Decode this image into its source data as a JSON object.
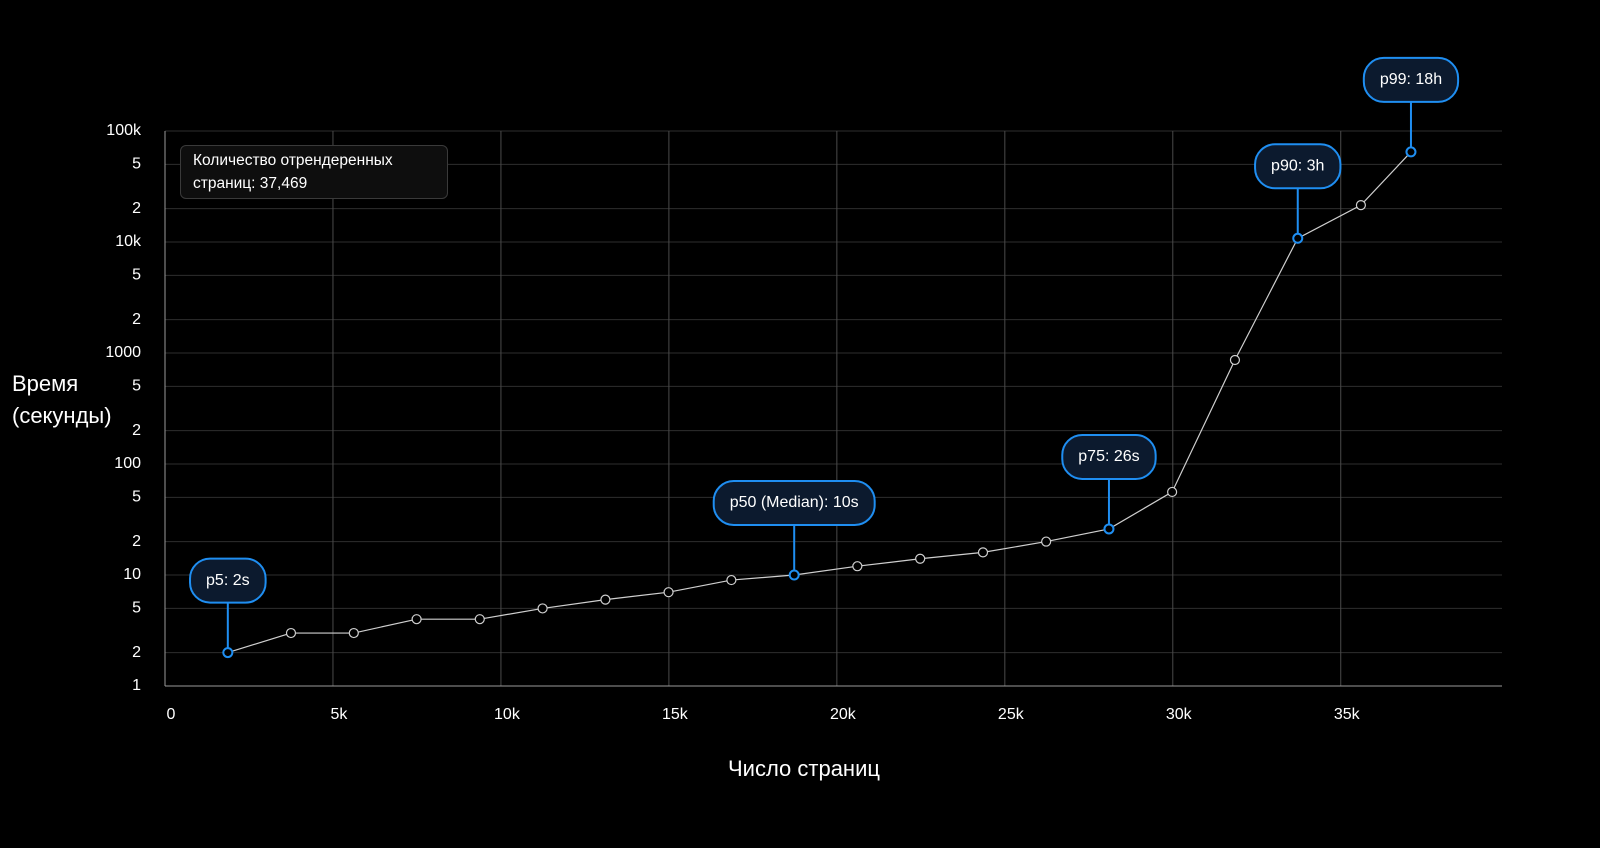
{
  "chart_data": {
    "type": "line",
    "x_label": "Число страниц",
    "y_label": "Время (секунды)",
    "info_box": "Количество отрендеренных страниц: 37,469",
    "log_y": true,
    "grid": true,
    "xlim": [
      0,
      39800
    ],
    "ylim": [
      1,
      100000
    ],
    "xticks": [
      0,
      {
        "value": 5000,
        "label": "5k"
      },
      {
        "value": 10000,
        "label": "10k"
      },
      {
        "value": 15000,
        "label": "15k"
      },
      {
        "value": 20000,
        "label": "20k"
      },
      {
        "value": 25000,
        "label": "25k"
      },
      {
        "value": 30000,
        "label": "30k"
      },
      {
        "value": 35000,
        "label": "35k"
      }
    ],
    "yticks": [
      1,
      {
        "value": 2,
        "label": "2"
      },
      {
        "value": 5,
        "label": "5"
      },
      10,
      {
        "value": 20,
        "label": "2"
      },
      {
        "value": 50,
        "label": "5"
      },
      100,
      {
        "value": 200,
        "label": "2"
      },
      {
        "value": 500,
        "label": "5"
      },
      1000,
      {
        "value": 2000,
        "label": "2"
      },
      {
        "value": 5000,
        "label": "5"
      },
      {
        "value": 10000,
        "label": "10k"
      },
      {
        "value": 20000,
        "label": "2"
      },
      {
        "value": 50000,
        "label": "5"
      },
      {
        "value": 100000,
        "label": "100k"
      }
    ],
    "x": [
      1870,
      3750,
      5620,
      7490,
      9370,
      11240,
      13110,
      14990,
      16860,
      18730,
      20610,
      22480,
      24350,
      26230,
      28100,
      29980,
      31850,
      33720,
      35600,
      37090
    ],
    "series": [
      {
        "color": "#cfcfcf",
        "values": [
          2,
          3,
          3,
          4,
          4,
          5,
          6,
          7,
          9,
          10,
          12,
          14,
          16,
          20,
          26,
          56,
          865,
          10800,
          21500,
          64800
        ]
      }
    ],
    "annotation_color": "#1f8ef1",
    "annotations": [
      {
        "text": "p5: 2s",
        "x": 1870,
        "y": 2
      },
      {
        "text": "p50 (Median): 10s",
        "x": 18730,
        "y": 10
      },
      {
        "text": "p75: 26s",
        "x": 28100,
        "y": 26
      },
      {
        "text": "p90: 3h",
        "x": 33720,
        "y": 10800
      },
      {
        "text": "p99: 18h",
        "x": 37090,
        "y": 64800
      }
    ]
  }
}
